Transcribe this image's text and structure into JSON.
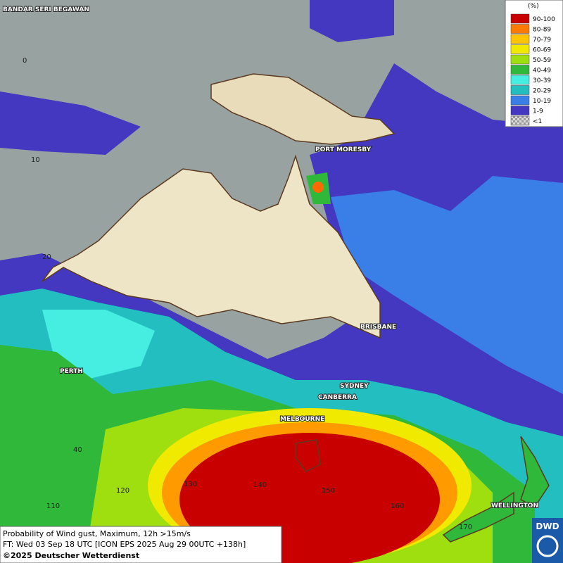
{
  "cities": [
    "BANDAR SERI BEGAWAN",
    "PORT MORESBY",
    "BRISBANE",
    "SYDNEY",
    "CANBERRA",
    "MELBOURNE",
    "PERTH",
    "WELLINGTON"
  ],
  "grid_labels": [
    "0",
    "10",
    "20",
    "40",
    "110",
    "120",
    "130",
    "140",
    "150",
    "160",
    "170"
  ],
  "legend": {
    "title": "(%)",
    "items": [
      {
        "label": "90-100",
        "color": "#c80000"
      },
      {
        "label": "80-89",
        "color": "#ff7a00"
      },
      {
        "label": "70-79",
        "color": "#ffc400"
      },
      {
        "label": "60-69",
        "color": "#f0ea00"
      },
      {
        "label": "50-59",
        "color": "#9fdf10"
      },
      {
        "label": "40-49",
        "color": "#2fb83a"
      },
      {
        "label": "30-39",
        "color": "#45eee0"
      },
      {
        "label": "20-29",
        "color": "#23bfc0"
      },
      {
        "label": "10-19",
        "color": "#3a7ee8"
      },
      {
        "label": "1-9",
        "color": "#4438c0"
      },
      {
        "label": "<1",
        "color": "checker"
      }
    ]
  },
  "caption": [
    "Probability of Wind gust, Maximum, 12h >15m/s",
    "FT: Wed 03 Sep 18 UTC [ICON EPS 2025 Aug 29 00UTC +138h]",
    "©2025 Deutscher Wetterdienst"
  ],
  "logo": "DWD"
}
